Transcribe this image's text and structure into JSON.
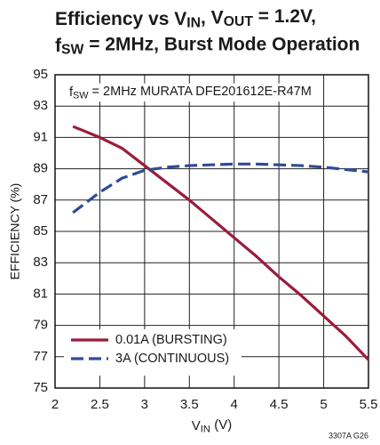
{
  "chart_data": {
    "type": "line",
    "title": [
      [
        "Efficiency vs V",
        "IN",
        ", V",
        "OUT",
        " = 1.2V,"
      ],
      [
        "f",
        "SW",
        " = 2MHz, Burst Mode Operation"
      ]
    ],
    "annotation": [
      "f",
      "SW",
      " = 2MHz MURATA DFE201612E-R47M"
    ],
    "xlabel": [
      "V",
      "IN",
      " (V)"
    ],
    "ylabel": "EFFICIENCY (%)",
    "footer": "3307A G26",
    "x": [
      2.2,
      2.5,
      2.75,
      3,
      3.25,
      3.5,
      3.75,
      4,
      4.25,
      4.5,
      4.75,
      5,
      5.25,
      5.5
    ],
    "series": [
      {
        "name": "0.01A (BURSTING)",
        "color": "#9a1c3c",
        "dash": false,
        "values": [
          91.7,
          91.0,
          90.3,
          89.2,
          88.1,
          87.0,
          85.8,
          84.6,
          83.4,
          82.1,
          80.9,
          79.6,
          78.3,
          76.8
        ]
      },
      {
        "name": "3A (CONTINUOUS)",
        "color": "#2f4a97",
        "dash": true,
        "values": [
          86.2,
          87.5,
          88.4,
          88.9,
          89.1,
          89.2,
          89.25,
          89.3,
          89.3,
          89.25,
          89.2,
          89.1,
          88.95,
          88.8
        ]
      }
    ],
    "xlim": [
      2,
      5.5
    ],
    "xticks": [
      2,
      2.5,
      3,
      3.5,
      4,
      4.5,
      5,
      5.5
    ],
    "ylim": [
      75,
      95
    ],
    "yticks": [
      75,
      77,
      79,
      81,
      83,
      85,
      87,
      89,
      91,
      93,
      95
    ],
    "grid": true,
    "legend": "lower left"
  }
}
